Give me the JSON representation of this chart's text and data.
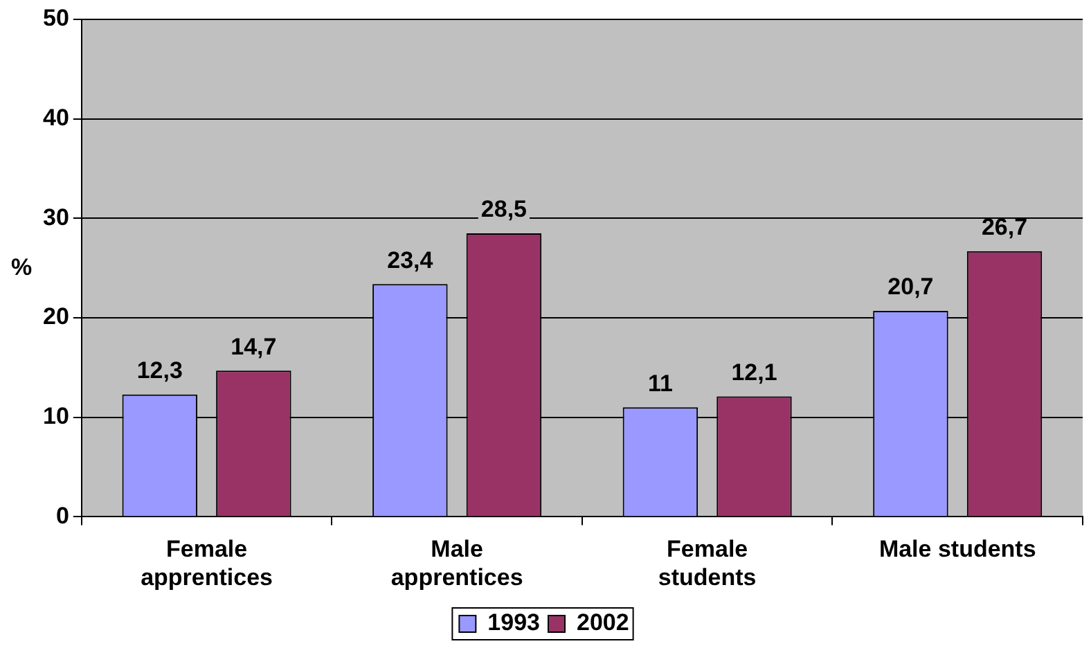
{
  "chart_data": {
    "type": "bar",
    "ylabel": "%",
    "categories": [
      "Female apprentices",
      "Male apprentices",
      "Female students",
      "Male students"
    ],
    "series": [
      {
        "name": "1993",
        "color": "#9999ff",
        "values": [
          12.3,
          23.4,
          11,
          20.7
        ],
        "value_labels": [
          "12,3",
          "23,4",
          "11",
          "20,7"
        ]
      },
      {
        "name": "2002",
        "color": "#993366",
        "values": [
          14.7,
          28.5,
          12.1,
          26.7
        ],
        "value_labels": [
          "14,7",
          "28,5",
          "12,1",
          "26,7"
        ]
      }
    ],
    "ylim": [
      0,
      50
    ],
    "yticks": [
      0,
      10,
      20,
      30,
      40,
      50
    ],
    "grid": "y",
    "legend": "bottom"
  }
}
